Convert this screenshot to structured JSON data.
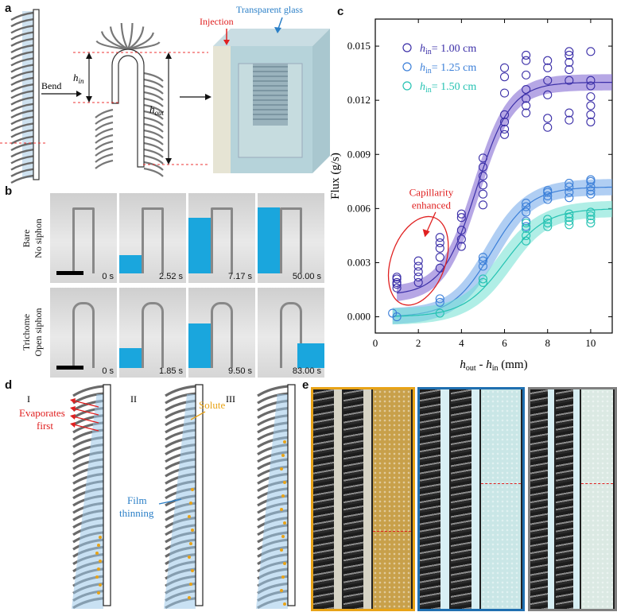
{
  "panels": {
    "a": {
      "letter": "a",
      "bend": "Bend",
      "h_in": "h",
      "h_in_sub": "in",
      "h_out": "h",
      "h_out_sub": "out",
      "injection": "Injection",
      "glass": "Transparent glass"
    },
    "b": {
      "letter": "b",
      "row1_label1": "Bare",
      "row1_label2": "No siphon",
      "row2_label1": "Trichome",
      "row2_label2": "Open siphon",
      "row1_times": [
        "0 s",
        "2.52 s",
        "7.17 s",
        "50.00 s"
      ],
      "row1_fill": [
        0.0,
        0.25,
        0.78,
        0.92
      ],
      "row2_times": [
        "0 s",
        "1.85 s",
        "9.50 s",
        "83.00 s"
      ],
      "row2_fill": [
        0.0,
        0.28,
        0.62,
        0.35
      ]
    },
    "c": {
      "letter": "c",
      "annotation_line1": "Capillarity",
      "annotation_line2": "enhanced"
    },
    "d": {
      "letter": "d",
      "stage1": "I",
      "stage2": "II",
      "stage3": "III",
      "evap_line1": "Evaporates",
      "evap_line2": "first",
      "solute": "Solute",
      "film_line1": "Film",
      "film_line2": "thinning"
    },
    "e": {
      "letter": "e",
      "frame_colors": [
        "#e8a317",
        "#1f6fb0",
        "#808080"
      ],
      "strip_colors": [
        "#c8a04a",
        "#c9e6e6",
        "#dbe9e3"
      ]
    }
  },
  "chart_data": {
    "type": "scatter",
    "title": "",
    "xlabel": "h_out - h_in (mm)",
    "ylabel": "Flux (g/s)",
    "xlim": [
      0,
      11
    ],
    "ylim": [
      -0.0009,
      0.0165
    ],
    "xticks": [
      0,
      2,
      4,
      6,
      8,
      10
    ],
    "yticks": [
      0.0,
      0.003,
      0.006,
      0.009,
      0.012,
      0.015
    ],
    "ytick_labels": [
      "0.000",
      "0.003",
      "0.006",
      "0.009",
      "0.012",
      "0.015"
    ],
    "legend_position": "top-left",
    "series": [
      {
        "name": "h_in = 1.00 cm",
        "legend_prefix": "h",
        "legend_sub": "in",
        "legend_value": "= 1.00 cm",
        "color": "#3b2fa8",
        "band": "#7a5fd0",
        "points": [
          [
            1,
            0.0016
          ],
          [
            1,
            0.0018
          ],
          [
            1,
            0.0019
          ],
          [
            1,
            0.0021
          ],
          [
            1,
            0.0022
          ],
          [
            2,
            0.0019
          ],
          [
            2,
            0.0022
          ],
          [
            2,
            0.0025
          ],
          [
            2,
            0.0028
          ],
          [
            2,
            0.0031
          ],
          [
            3,
            0.0027
          ],
          [
            3,
            0.0033
          ],
          [
            3,
            0.0038
          ],
          [
            3,
            0.0041
          ],
          [
            3,
            0.0044
          ],
          [
            4,
            0.0039
          ],
          [
            4,
            0.0043
          ],
          [
            4,
            0.0048
          ],
          [
            4,
            0.0055
          ],
          [
            4,
            0.0057
          ],
          [
            5,
            0.0062
          ],
          [
            5,
            0.0068
          ],
          [
            5,
            0.0073
          ],
          [
            5,
            0.0078
          ],
          [
            5,
            0.0083
          ],
          [
            5,
            0.0088
          ],
          [
            6,
            0.0101
          ],
          [
            6,
            0.0104
          ],
          [
            6,
            0.0108
          ],
          [
            6,
            0.0112
          ],
          [
            6,
            0.0124
          ],
          [
            6,
            0.0133
          ],
          [
            6,
            0.0138
          ],
          [
            7,
            0.0113
          ],
          [
            7,
            0.0117
          ],
          [
            7,
            0.0121
          ],
          [
            7,
            0.0126
          ],
          [
            7,
            0.0134
          ],
          [
            7,
            0.0142
          ],
          [
            7,
            0.0145
          ],
          [
            8,
            0.0105
          ],
          [
            8,
            0.011
          ],
          [
            8,
            0.0123
          ],
          [
            8,
            0.0131
          ],
          [
            8,
            0.0138
          ],
          [
            8,
            0.0142
          ],
          [
            9,
            0.0109
          ],
          [
            9,
            0.0113
          ],
          [
            9,
            0.0131
          ],
          [
            9,
            0.0137
          ],
          [
            9,
            0.0141
          ],
          [
            9,
            0.0145
          ],
          [
            9,
            0.0147
          ],
          [
            10,
            0.0108
          ],
          [
            10,
            0.0112
          ],
          [
            10,
            0.0117
          ],
          [
            10,
            0.0122
          ],
          [
            10,
            0.0128
          ],
          [
            10,
            0.0131
          ],
          [
            10,
            0.0147
          ]
        ],
        "fit": {
          "base": 0.0012,
          "top": 0.013,
          "x0": 4.7,
          "k": 1.25
        }
      },
      {
        "name": "h_in = 1.25 cm",
        "legend_prefix": "h",
        "legend_sub": "in",
        "legend_value": "= 1.25 cm",
        "color": "#3b7fd8",
        "band": "#6fa6ea",
        "points": [
          [
            0.8,
            0.0002
          ],
          [
            1,
            0.0
          ],
          [
            3,
            0.0008
          ],
          [
            3,
            0.001
          ],
          [
            5,
            0.0028
          ],
          [
            5,
            0.0031
          ],
          [
            5,
            0.0033
          ],
          [
            7,
            0.005
          ],
          [
            7,
            0.0053
          ],
          [
            7,
            0.0058
          ],
          [
            7,
            0.0061
          ],
          [
            7,
            0.0063
          ],
          [
            8,
            0.0065
          ],
          [
            8,
            0.0067
          ],
          [
            8,
            0.0069
          ],
          [
            8,
            0.007
          ],
          [
            9,
            0.0066
          ],
          [
            9,
            0.0069
          ],
          [
            9,
            0.0072
          ],
          [
            9,
            0.0074
          ],
          [
            10,
            0.0068
          ],
          [
            10,
            0.007
          ],
          [
            10,
            0.0072
          ],
          [
            10,
            0.0075
          ],
          [
            10,
            0.0076
          ]
        ],
        "fit": {
          "base": 0.0,
          "top": 0.0072,
          "x0": 5.4,
          "k": 1.1
        }
      },
      {
        "name": "h_in = 1.50 cm",
        "legend_prefix": "h",
        "legend_sub": "in",
        "legend_value": "= 1.50 cm",
        "color": "#24c2b2",
        "band": "#6fe0d2",
        "points": [
          [
            3,
            0.0002
          ],
          [
            5,
            0.0019
          ],
          [
            5,
            0.0021
          ],
          [
            7,
            0.0042
          ],
          [
            7,
            0.0045
          ],
          [
            7,
            0.0049
          ],
          [
            7,
            0.0052
          ],
          [
            8,
            0.005
          ],
          [
            8,
            0.0052
          ],
          [
            8,
            0.0054
          ],
          [
            9,
            0.0051
          ],
          [
            9,
            0.0053
          ],
          [
            9,
            0.0055
          ],
          [
            9,
            0.0057
          ],
          [
            10,
            0.0052
          ],
          [
            10,
            0.0054
          ],
          [
            10,
            0.0056
          ],
          [
            10,
            0.0058
          ]
        ],
        "fit": {
          "base": 0.0,
          "top": 0.006,
          "x0": 6.0,
          "k": 1.05
        }
      }
    ]
  }
}
